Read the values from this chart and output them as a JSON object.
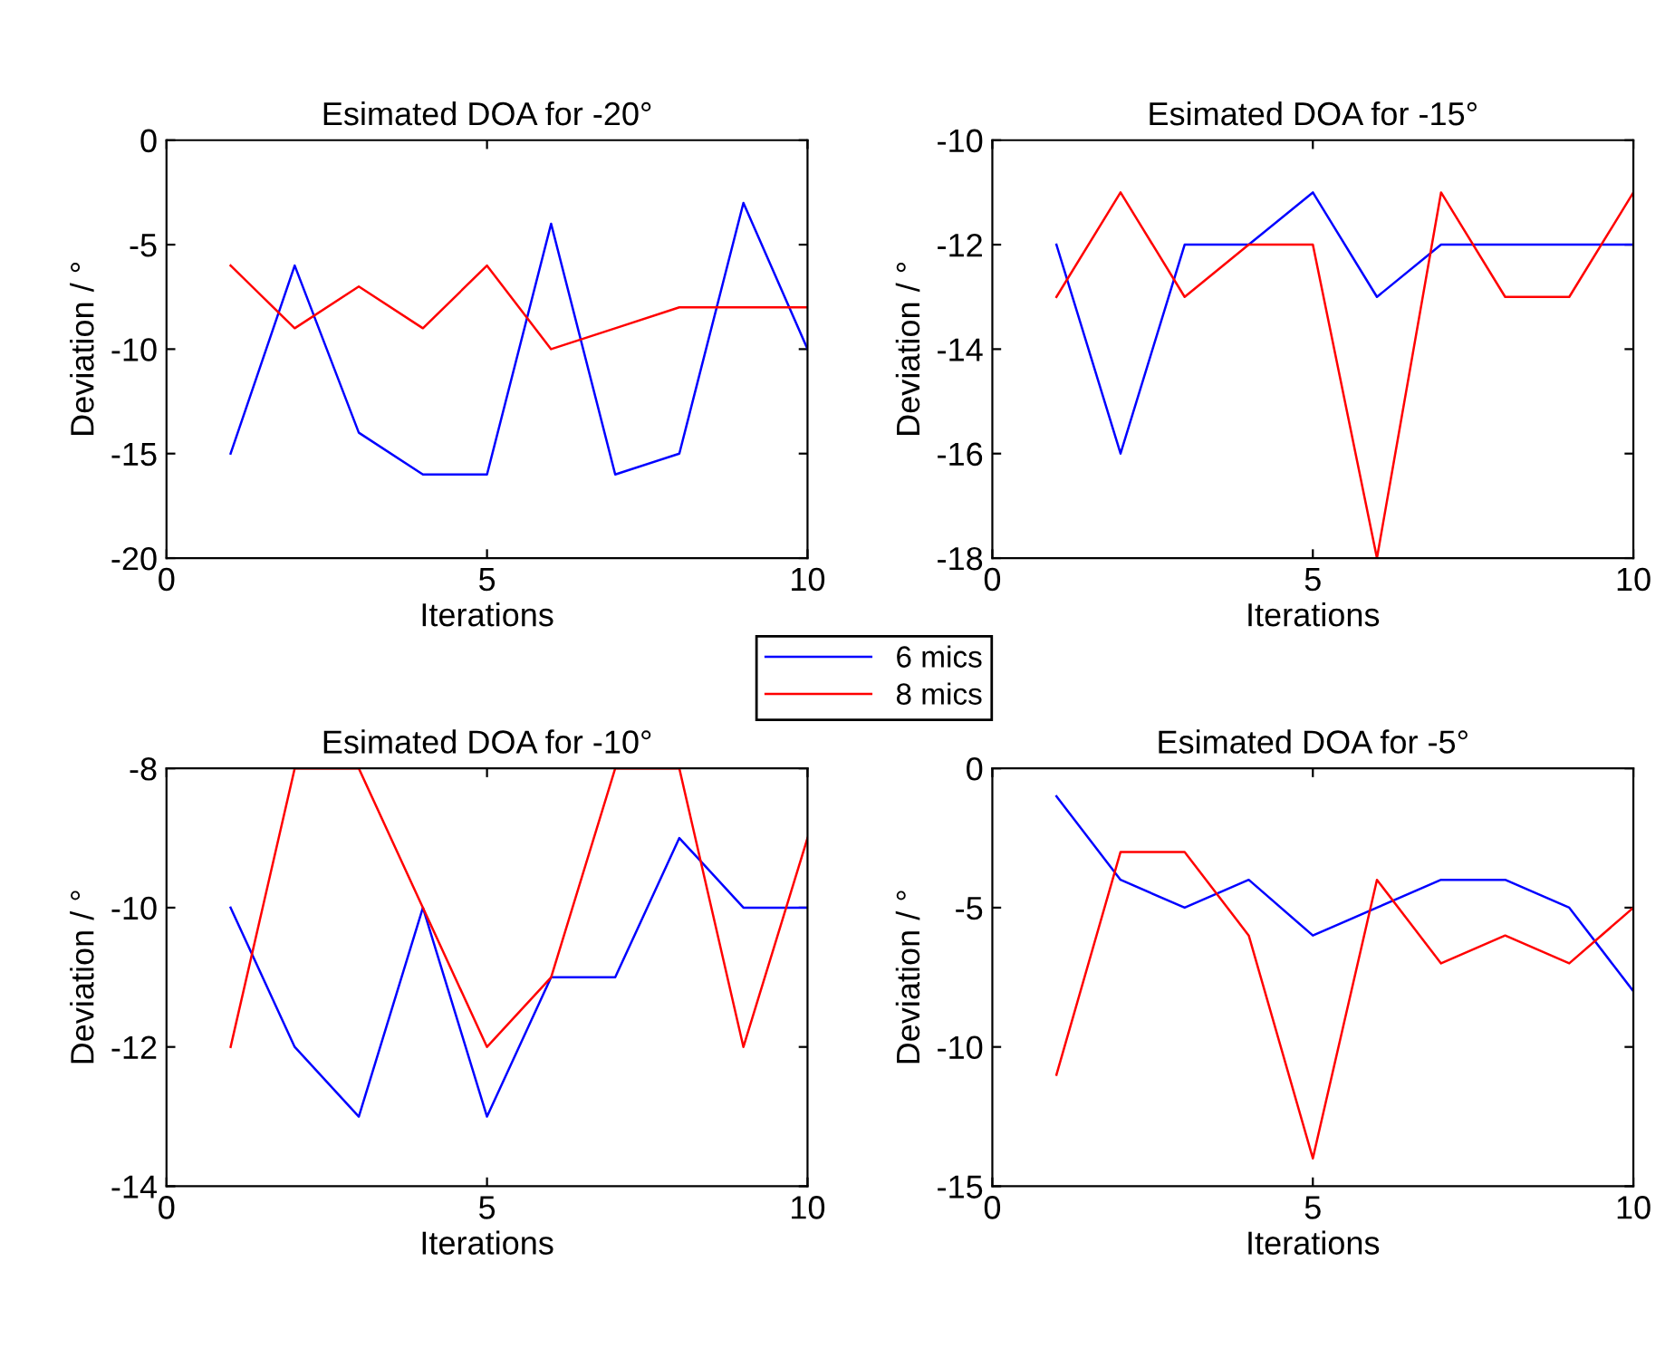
{
  "chart_data": [
    {
      "type": "line",
      "title": "Esimated DOA for -20°",
      "xlabel": "Iterations",
      "ylabel": "Deviation / °",
      "x": [
        1,
        2,
        3,
        4,
        5,
        6,
        7,
        8,
        9,
        10
      ],
      "xlim": [
        0,
        10
      ],
      "xticks": [
        0,
        5,
        10
      ],
      "ylim": [
        -20,
        0
      ],
      "yticks": [
        -20,
        -15,
        -10,
        -5,
        0
      ],
      "legend": "bottom right",
      "series": [
        {
          "name": "6 mics",
          "color": "#0000ff",
          "values": [
            -15,
            -6,
            -14,
            -16,
            -16,
            -4,
            -16,
            -15,
            -3,
            -10
          ]
        },
        {
          "name": "8 mics",
          "color": "#ff0000",
          "values": [
            -6,
            -9,
            -7,
            -9,
            -6,
            -10,
            -9,
            -8,
            -8,
            -8
          ]
        }
      ]
    },
    {
      "type": "line",
      "title": "Esimated DOA for -15°",
      "xlabel": "Iterations",
      "ylabel": "Deviation / °",
      "x": [
        1,
        2,
        3,
        4,
        5,
        6,
        7,
        8,
        9,
        10
      ],
      "xlim": [
        0,
        10
      ],
      "xticks": [
        0,
        5,
        10
      ],
      "ylim": [
        -18,
        -10
      ],
      "yticks": [
        -18,
        -16,
        -14,
        -12,
        -10
      ],
      "series": [
        {
          "color": "#0000ff",
          "values": [
            -12,
            -16,
            -12,
            -12,
            -11,
            -13,
            -12,
            -12,
            -12,
            -12
          ]
        },
        {
          "color": "#ff0000",
          "values": [
            -13,
            -11,
            -13,
            -12,
            -12,
            -18,
            -11,
            -13,
            -13,
            -11
          ]
        }
      ]
    },
    {
      "type": "line",
      "title": "Esimated DOA for -10°",
      "xlabel": "Iterations",
      "ylabel": "Deviation / °",
      "x": [
        1,
        2,
        3,
        4,
        5,
        6,
        7,
        8,
        9,
        10
      ],
      "xlim": [
        0,
        10
      ],
      "xticks": [
        0,
        5,
        10
      ],
      "ylim": [
        -14,
        -8
      ],
      "yticks": [
        -14,
        -12,
        -10,
        -8
      ],
      "series": [
        {
          "color": "#0000ff",
          "values": [
            -10,
            -12,
            -13,
            -10,
            -13,
            -11,
            -11,
            -9,
            -10,
            -10
          ]
        },
        {
          "color": "#ff0000",
          "values": [
            -12,
            -8,
            -8,
            -10,
            -12,
            -11,
            -8,
            -8,
            -12,
            -9
          ]
        }
      ]
    },
    {
      "type": "line",
      "title": "Esimated DOA for -5°",
      "xlabel": "Iterations",
      "ylabel": "Deviation / °",
      "x": [
        1,
        2,
        3,
        4,
        5,
        6,
        7,
        8,
        9,
        10
      ],
      "xlim": [
        0,
        10
      ],
      "xticks": [
        0,
        5,
        10
      ],
      "ylim": [
        -15,
        0
      ],
      "yticks": [
        -15,
        -10,
        -5,
        0
      ],
      "series": [
        {
          "color": "#0000ff",
          "values": [
            -1,
            -4,
            -5,
            -4,
            -6,
            -5,
            -4,
            -4,
            -5,
            -8
          ]
        },
        {
          "color": "#ff0000",
          "values": [
            -11,
            -3,
            -3,
            -6,
            -14,
            -4,
            -7,
            -6,
            -7,
            -5
          ]
        }
      ]
    }
  ]
}
